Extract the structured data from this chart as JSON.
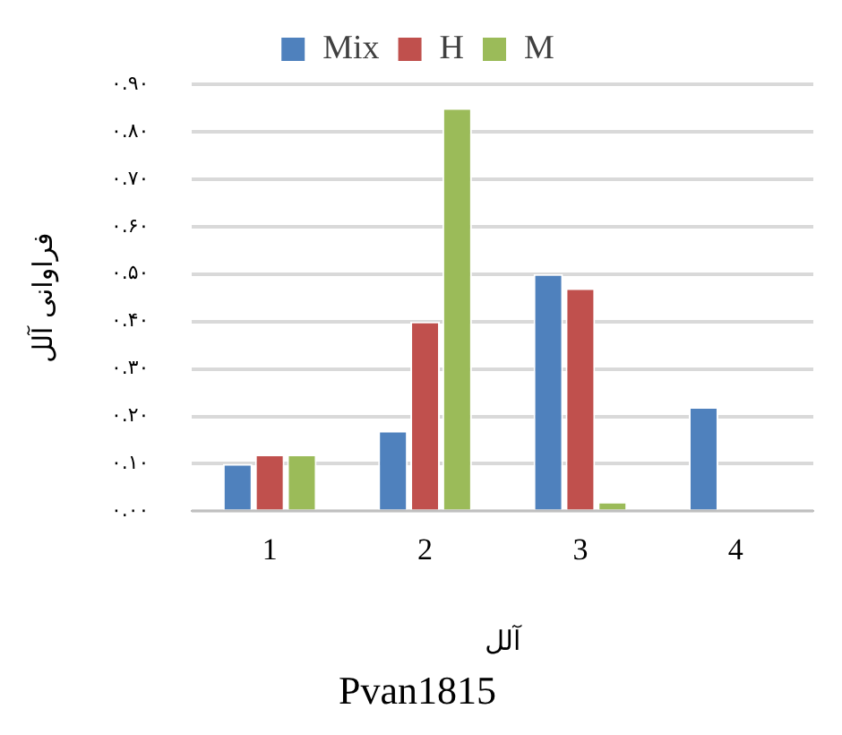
{
  "chart_data": {
    "type": "bar",
    "title": "Pvan1815",
    "xlabel": "آلل",
    "ylabel": "فراوانی آلل",
    "categories": [
      "1",
      "2",
      "3",
      "4"
    ],
    "series": [
      {
        "name": "Mix",
        "color": "#4f81bd",
        "values": [
          0.1,
          0.17,
          0.5,
          0.22
        ]
      },
      {
        "name": "H",
        "color": "#c0504d",
        "values": [
          0.12,
          0.4,
          0.47,
          0
        ]
      },
      {
        "name": "M",
        "color": "#9bbb59",
        "values": [
          0.12,
          0.85,
          0.02,
          0
        ]
      }
    ],
    "ylim": [
      0,
      0.9
    ],
    "yticks": [
      {
        "value": 0,
        "label": "۰.۰۰"
      },
      {
        "value": 0.1,
        "label": "۰.۱۰"
      },
      {
        "value": 0.2,
        "label": "۰.۲۰"
      },
      {
        "value": 0.3,
        "label": "۰.۳۰"
      },
      {
        "value": 0.4,
        "label": "۰.۴۰"
      },
      {
        "value": 0.5,
        "label": "۰.۵۰"
      },
      {
        "value": 0.6,
        "label": "۰.۶۰"
      },
      {
        "value": 0.7,
        "label": "۰.۷۰"
      },
      {
        "value": 0.8,
        "label": "۰.۸۰"
      },
      {
        "value": 0.9,
        "label": "۰.۹۰"
      }
    ],
    "grid": "y",
    "legend": "top"
  }
}
